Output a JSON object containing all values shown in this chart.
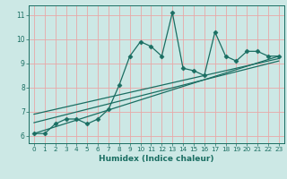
{
  "title": "",
  "xlabel": "Humidex (Indice chaleur)",
  "ylabel": "",
  "bg_color": "#cce8e5",
  "grid_color": "#e8a8a8",
  "line_color": "#1a6e62",
  "xlim": [
    -0.5,
    23.5
  ],
  "ylim": [
    5.7,
    11.4
  ],
  "xticks": [
    0,
    1,
    2,
    3,
    4,
    5,
    6,
    7,
    8,
    9,
    10,
    11,
    12,
    13,
    14,
    15,
    16,
    17,
    18,
    19,
    20,
    21,
    22,
    23
  ],
  "yticks": [
    6,
    7,
    8,
    9,
    10,
    11
  ],
  "main_x": [
    0,
    1,
    2,
    3,
    4,
    5,
    6,
    7,
    8,
    9,
    10,
    11,
    12,
    13,
    14,
    15,
    16,
    17,
    18,
    19,
    20,
    21,
    22,
    23
  ],
  "main_y": [
    6.1,
    6.1,
    6.5,
    6.7,
    6.7,
    6.5,
    6.7,
    7.1,
    8.1,
    9.3,
    9.9,
    9.7,
    9.3,
    11.1,
    8.8,
    8.7,
    8.5,
    10.3,
    9.3,
    9.1,
    9.5,
    9.5,
    9.3,
    9.3
  ],
  "trend1_x": [
    0,
    23
  ],
  "trend1_y": [
    6.1,
    9.3
  ],
  "trend2_x": [
    0,
    23
  ],
  "trend2_y": [
    6.55,
    9.1
  ],
  "trend3_x": [
    0,
    23
  ],
  "trend3_y": [
    6.9,
    9.2
  ]
}
